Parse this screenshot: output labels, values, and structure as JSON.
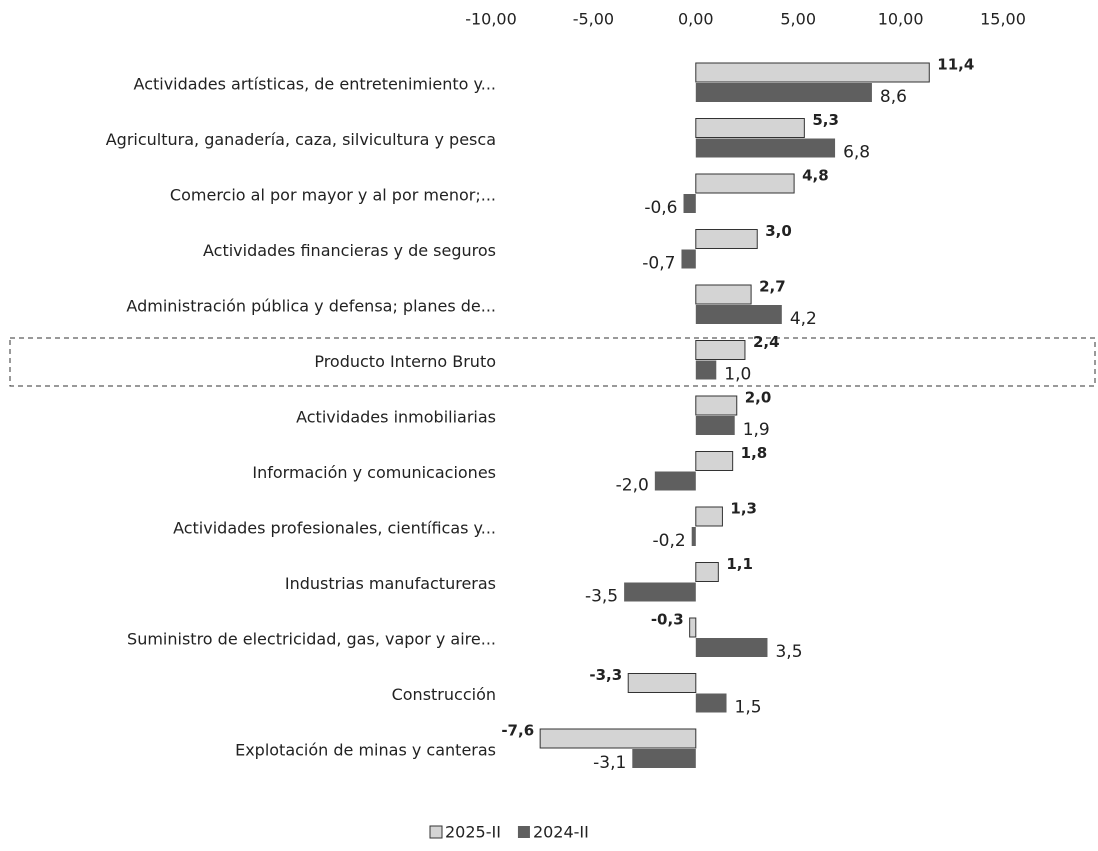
{
  "chart_data": {
    "type": "bar",
    "orientation": "horizontal",
    "categories": [
      "Actividades artísticas, de entretenimiento y...",
      "Agricultura, ganadería, caza, silvicultura y pesca",
      "Comercio al por mayor y al por menor;...",
      "Actividades financieras y de seguros",
      "Administración pública y defensa; planes de...",
      "Producto Interno Bruto",
      "Actividades inmobiliarias",
      "Información y comunicaciones",
      "Actividades profesionales, científicas y...",
      "Industrias manufactureras",
      "Suministro de electricidad, gas, vapor y aire...",
      "Construcción",
      "Explotación de minas y canteras"
    ],
    "series": [
      {
        "name": "2025-II",
        "color": "#d4d4d4",
        "values": [
          11.4,
          5.3,
          4.8,
          3.0,
          2.7,
          2.4,
          2.0,
          1.8,
          1.3,
          1.1,
          -0.3,
          -3.3,
          -7.6
        ],
        "value_labels": [
          "11,4",
          "5,3",
          "4,8",
          "3,0",
          "2,7",
          "2,4",
          "2,0",
          "1,8",
          "1,3",
          "1,1",
          "-0,3",
          "-3,3",
          "-7,6"
        ]
      },
      {
        "name": "2024-II",
        "color": "#5f5f5f",
        "values": [
          8.6,
          6.8,
          -0.6,
          -0.7,
          4.2,
          1.0,
          1.9,
          -2.0,
          -0.2,
          -3.5,
          3.5,
          1.5,
          -3.1
        ],
        "value_labels": [
          "8,6",
          "6,8",
          "-0,6",
          "-0,7",
          "4,2",
          "1,0",
          "1,9",
          "-2,0",
          "-0,2",
          "-3,5",
          "3,5",
          "1,5",
          "-3,1"
        ]
      }
    ],
    "xlim": [
      -10,
      15
    ],
    "xticks": [
      {
        "value": -10,
        "label": "-10,00"
      },
      {
        "value": -5,
        "label": "-5,00"
      },
      {
        "value": 0,
        "label": "0,00"
      },
      {
        "value": 5,
        "label": "5,00"
      },
      {
        "value": 10,
        "label": "10,00"
      },
      {
        "value": 15,
        "label": "15,00"
      }
    ],
    "grid": false,
    "legend": "bottom"
  }
}
